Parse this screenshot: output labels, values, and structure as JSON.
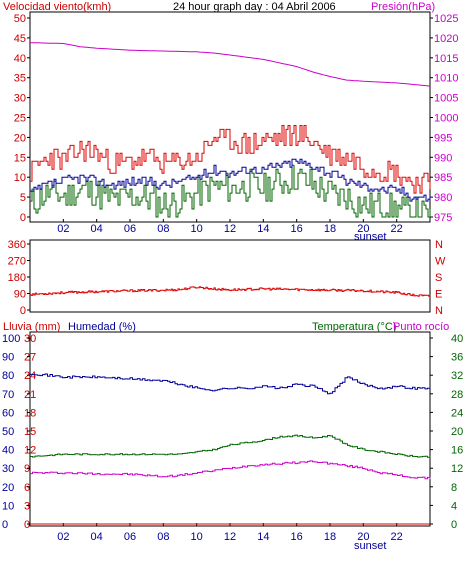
{
  "title": "24 hour graph day : 04 Abril 2006",
  "sunset_label": "sunset",
  "x_ticks": [
    "02",
    "04",
    "06",
    "08",
    "10",
    "12",
    "14",
    "16",
    "18",
    "20",
    "22"
  ],
  "colors": {
    "red": "#dd0000",
    "blue": "#000099",
    "green": "#006600",
    "magenta": "#cc00cc",
    "wind_axis": "#cc0000",
    "dir_axis": "#cc0000",
    "rain_axis": "#cc0000",
    "hum_axis": "#000099",
    "temp_axis": "#006600"
  },
  "chart_data": [
    {
      "type": "line",
      "panel": "wind-pressure",
      "left_axis": {
        "label": "Velocidad viento(kmh)",
        "ticks": [
          "50",
          "45",
          "40",
          "35",
          "30",
          "25",
          "20",
          "15",
          "10",
          "5",
          "0"
        ],
        "range": [
          0,
          50
        ]
      },
      "right_axis": {
        "label": "Presión(hPa)",
        "ticks": [
          "1025",
          "1020",
          "1015",
          "1010",
          "1005",
          "1000",
          "995",
          "990",
          "985",
          "980",
          "975"
        ],
        "range": [
          975,
          1025
        ]
      },
      "series": [
        {
          "name": "Presión(hPa)",
          "axis": "right",
          "x": [
            0,
            2,
            3,
            4,
            6,
            8,
            10,
            11,
            12,
            14,
            16,
            17,
            18,
            19,
            20,
            22,
            24
          ],
          "values": [
            1018.8,
            1018.6,
            1017.8,
            1017.4,
            1016.9,
            1016.7,
            1016.5,
            1016.2,
            1015.7,
            1014.6,
            1012.8,
            1011.4,
            1010.3,
            1009.4,
            1009.1,
            1008.7,
            1007.9
          ]
        },
        {
          "axis": "left",
          "x": [
            0,
            1,
            2,
            3,
            4,
            5,
            6,
            7,
            8,
            9,
            10,
            11,
            12,
            13,
            14,
            15,
            16,
            17,
            18,
            19,
            20,
            21,
            22,
            23,
            24
          ],
          "values": [
            11,
            15,
            14,
            17,
            16,
            13,
            14,
            15,
            13,
            14,
            15,
            20,
            19,
            18,
            19,
            20,
            21,
            19,
            16,
            15,
            13,
            12,
            11,
            9,
            8
          ]
        },
        {
          "axis": "left",
          "x": [
            0,
            1,
            2,
            3,
            4,
            5,
            6,
            7,
            8,
            9,
            10,
            11,
            12,
            13,
            14,
            15,
            16,
            17,
            18,
            19,
            20,
            21,
            22,
            23,
            24
          ],
          "values": [
            6,
            8,
            9,
            10,
            9,
            8,
            9,
            9,
            8,
            9,
            10,
            12,
            11,
            12,
            12,
            13,
            14,
            13,
            11,
            9,
            8,
            7,
            7,
            5,
            5
          ]
        },
        {
          "axis": "left",
          "x": [
            0,
            1,
            2,
            3,
            4,
            5,
            6,
            7,
            8,
            9,
            10,
            11,
            12,
            13,
            14,
            15,
            16,
            17,
            18,
            19,
            20,
            21,
            22,
            23,
            24
          ],
          "values": [
            3,
            6,
            5,
            7,
            6,
            4,
            5,
            5,
            3,
            4,
            6,
            8,
            7,
            8,
            7,
            9,
            10,
            8,
            6,
            5,
            3,
            3,
            2,
            1,
            0
          ]
        }
      ]
    },
    {
      "type": "line",
      "panel": "wind-direction",
      "left_axis": {
        "ticks": [
          "360",
          "270",
          "180",
          "90",
          "0"
        ],
        "range": [
          0,
          360
        ]
      },
      "right_axis": {
        "ticks": [
          "N",
          "W",
          "S",
          "E",
          "N"
        ]
      },
      "series": [
        {
          "x": [
            0,
            2,
            4,
            6,
            8,
            9,
            10,
            11,
            12,
            14,
            16,
            18,
            20,
            22,
            23,
            24
          ],
          "values": [
            85,
            95,
            100,
            105,
            108,
            112,
            125,
            115,
            110,
            115,
            112,
            108,
            105,
            95,
            80,
            75
          ]
        }
      ]
    },
    {
      "type": "line",
      "panel": "rain-humidity-temperature",
      "left_axis_rain": {
        "label": "Lluvia (mm)",
        "ticks": [
          "30",
          "27",
          "24",
          "21",
          "18",
          "15",
          "12",
          "9",
          "6",
          "3",
          "0"
        ],
        "range": [
          0,
          30
        ]
      },
      "left_axis_humidity": {
        "label": "Humedad (%)",
        "ticks": [
          "100",
          "90",
          "80",
          "70",
          "60",
          "50",
          "40",
          "30",
          "20",
          "10",
          "0"
        ],
        "range": [
          0,
          100
        ]
      },
      "right_axis": {
        "label": "Temperatura (°C)",
        "label2": "Punto rocío",
        "ticks": [
          "40",
          "36",
          "32",
          "28",
          "24",
          "20",
          "16",
          "12",
          "8",
          "4",
          "0"
        ],
        "range": [
          0,
          40
        ]
      },
      "series": [
        {
          "name": "Humedad (%)",
          "axis": "humidity",
          "x": [
            0,
            1,
            2,
            4,
            6,
            8,
            9,
            10,
            11,
            12,
            13,
            14,
            15,
            16,
            17,
            18,
            19,
            20,
            21,
            22,
            23,
            24
          ],
          "values": [
            81,
            80,
            79,
            79,
            78,
            77,
            75,
            73,
            72,
            73,
            73,
            74,
            73,
            75,
            74,
            70,
            79,
            75,
            73,
            74,
            73,
            73
          ]
        },
        {
          "name": "Temperatura (°C)",
          "axis": "temp",
          "x": [
            0,
            2,
            4,
            6,
            8,
            9,
            10,
            11,
            12,
            13,
            14,
            15,
            16,
            17,
            18,
            19,
            20,
            21,
            22,
            23,
            24
          ],
          "values": [
            14.5,
            15,
            15,
            15,
            15,
            15,
            15.5,
            16,
            17,
            17.5,
            18,
            18.8,
            19,
            18.5,
            19,
            17,
            16,
            15.5,
            15,
            14.5,
            14.5
          ]
        },
        {
          "name": "Punto rocío",
          "axis": "temp",
          "x": [
            0,
            2,
            4,
            6,
            8,
            9,
            10,
            11,
            12,
            13,
            14,
            15,
            16,
            17,
            18,
            19,
            20,
            21,
            22,
            23,
            24
          ],
          "values": [
            11,
            11,
            10.8,
            10.7,
            10.2,
            10.5,
            11,
            11.5,
            12,
            12.5,
            12.8,
            13,
            13.2,
            13.5,
            13,
            12.5,
            12,
            11,
            10.5,
            10,
            9.8
          ]
        },
        {
          "name": "Lluvia (mm)",
          "axis": "rain",
          "x": [
            0,
            24
          ],
          "values": [
            0,
            0
          ]
        }
      ]
    }
  ]
}
